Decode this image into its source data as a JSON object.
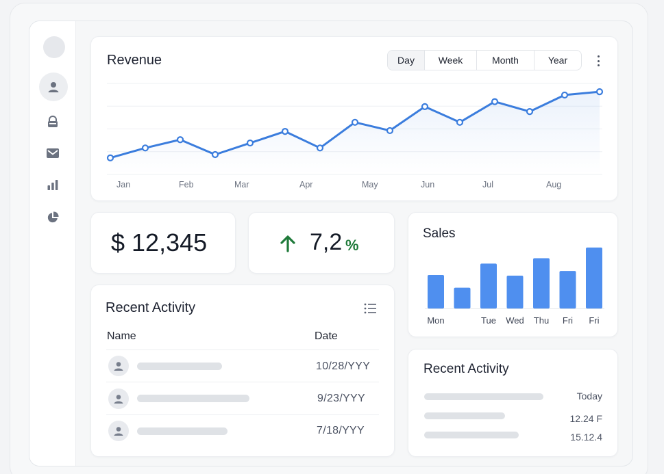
{
  "revenue": {
    "title": "Revenue",
    "ranges": [
      {
        "label": "Day",
        "active": true
      },
      {
        "label": "Week",
        "active": false
      },
      {
        "label": "Month",
        "active": false
      },
      {
        "label": "Year",
        "active": false
      }
    ],
    "x_labels": [
      "Jan",
      "Feb",
      "Mar",
      "Apr",
      "May",
      "Jun",
      "Jul",
      "Aug"
    ]
  },
  "kpi": {
    "amount": "$ 12,345",
    "growth": "7,2",
    "growth_unit": "%",
    "growth_direction": "up"
  },
  "recent_activity": {
    "title": "Recent Activity",
    "columns": {
      "name": "Name",
      "date": "Date"
    },
    "rows": [
      {
        "date": "10/28/YYY"
      },
      {
        "date": "9/23/YYY"
      },
      {
        "date": "7/18/YYY"
      }
    ]
  },
  "sales": {
    "title": "Sales"
  },
  "recent_activity_small": {
    "title": "Recent Activity",
    "items": [
      {
        "value": "Today"
      },
      {
        "value": "12.24 F"
      },
      {
        "value": "15.12.4"
      }
    ]
  },
  "colors": {
    "accent": "#3b7ddd",
    "bar": "#4f8fef",
    "positive": "#1f7a3a"
  },
  "chart_data": [
    {
      "type": "line",
      "title": "Revenue",
      "x_ticks": [
        "Jan",
        "Feb",
        "Mar",
        "Apr",
        "May",
        "Jun",
        "Jul",
        "Aug"
      ],
      "series": [
        {
          "values": [
            2,
            3.2,
            4.2,
            2.4,
            3.8,
            5.2,
            3.2,
            6.3,
            5.3,
            8.2,
            6.3,
            8.8,
            7.6,
            9.6,
            10
          ]
        }
      ],
      "ylim": [
        0,
        11
      ],
      "grid": true,
      "marker": "circle"
    },
    {
      "type": "bar",
      "title": "Sales",
      "categories": [
        "Mon",
        "Tue",
        "Wed",
        "Thu",
        "Fri"
      ],
      "bars": [
        {
          "label": "Mon",
          "value": 50
        },
        {
          "label": "",
          "value": 31
        },
        {
          "label": "Tue",
          "value": 67
        },
        {
          "label": "Wed",
          "value": 49
        },
        {
          "label": "Thu",
          "value": 75
        },
        {
          "label": "Fri",
          "value": 56
        },
        {
          "label": "Fri",
          "value": 91
        }
      ],
      "ylim": [
        0,
        100
      ]
    }
  ]
}
